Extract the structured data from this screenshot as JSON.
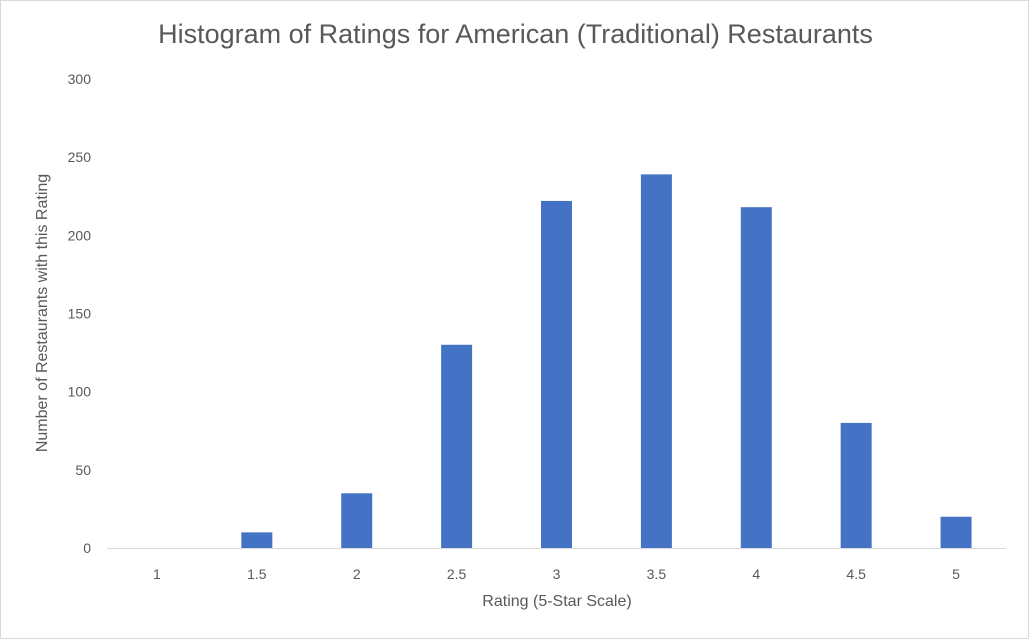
{
  "chart_data": {
    "type": "bar",
    "title": "Histogram of Ratings for American (Traditional) Restaurants",
    "xlabel": "Rating (5-Star Scale)",
    "ylabel": "Number of Restaurants with this Rating",
    "categories": [
      "1",
      "1.5",
      "2",
      "2.5",
      "3",
      "3.5",
      "4",
      "4.5",
      "5"
    ],
    "values": [
      0,
      10,
      35,
      130,
      222,
      239,
      218,
      80,
      20
    ],
    "ylim": [
      0,
      300
    ],
    "yticks": [
      "0",
      "50",
      "100",
      "150",
      "200",
      "250",
      "300"
    ],
    "grid": false,
    "legend": "none",
    "bar_color": "#4472c4"
  }
}
